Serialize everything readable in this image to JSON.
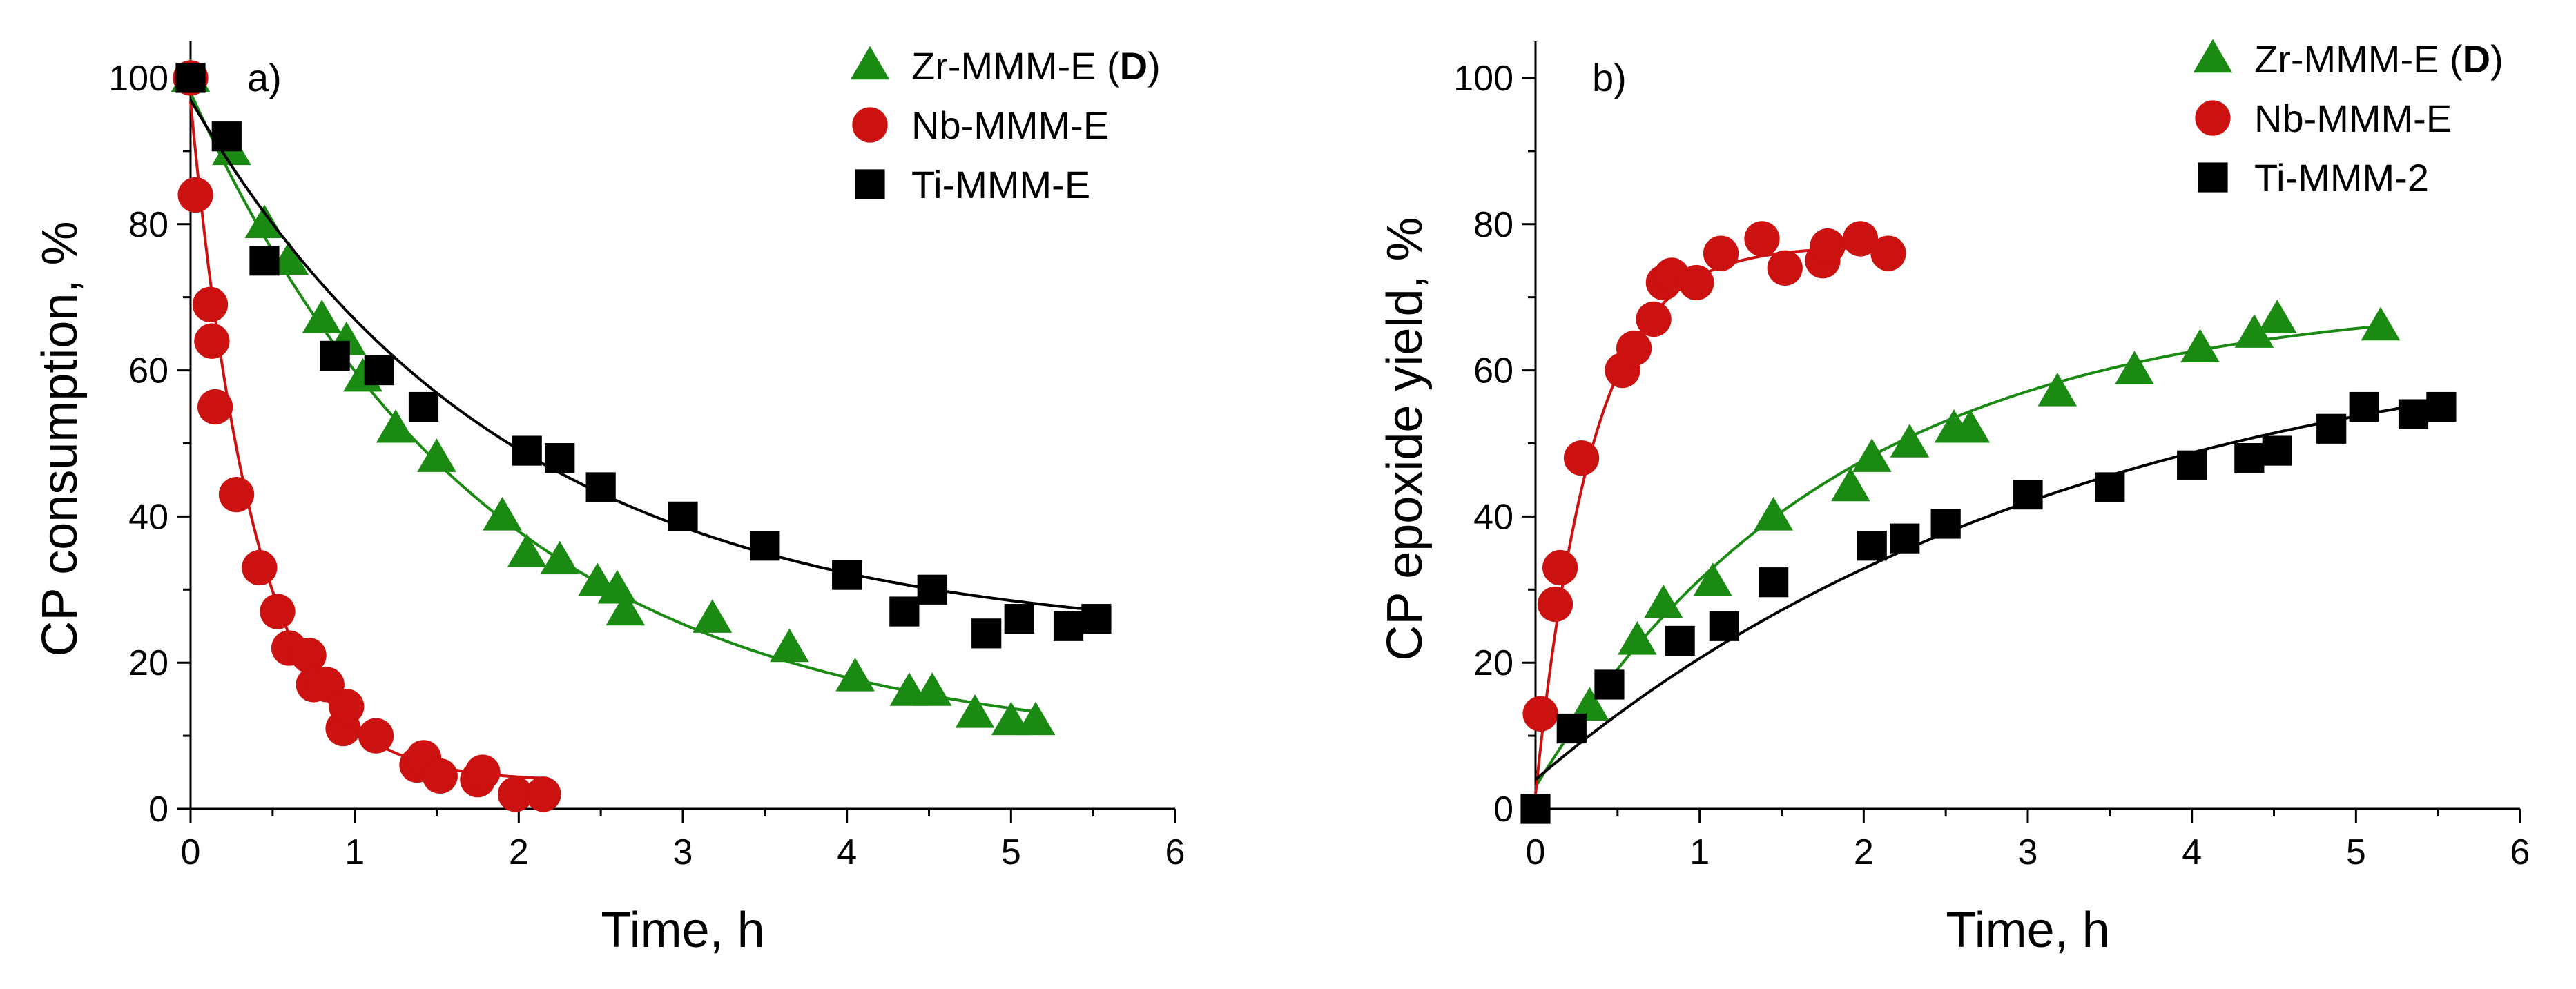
{
  "colors": {
    "zr": "#1a8a12",
    "nb": "#cc1111",
    "ti": "#000000"
  },
  "chart_data": [
    {
      "type": "scatter",
      "panel_label": "a)",
      "xlabel": "Time, h",
      "ylabel": "CP consumption, %",
      "xlim": [
        0,
        6
      ],
      "ylim": [
        0,
        105
      ],
      "xticks": [
        0,
        1,
        2,
        3,
        4,
        5,
        6
      ],
      "yticks": [
        0,
        20,
        40,
        60,
        80,
        100
      ],
      "legend_position": "top-right",
      "series": [
        {
          "key": "zr",
          "name_prefix": "Zr-MMM-E (",
          "name_bold": "D",
          "name_suffix": ")",
          "marker": "triangle",
          "x": [
            0.0,
            0.25,
            0.45,
            0.6,
            0.8,
            0.95,
            1.05,
            1.25,
            1.5,
            1.9,
            2.05,
            2.25,
            2.48,
            2.6,
            2.65,
            3.18,
            3.65,
            4.05,
            4.38,
            4.52,
            4.78,
            5.0,
            5.15
          ],
          "y": [
            100,
            90,
            80,
            75,
            67,
            64,
            59,
            52,
            48,
            40,
            35,
            34,
            31,
            30,
            27,
            26,
            22,
            18,
            16,
            16,
            13,
            12,
            12
          ],
          "fit": {
            "model": "exp",
            "A": 90,
            "k": 0.55,
            "C": 8
          }
        },
        {
          "key": "nb",
          "name_prefix": "Nb-MMM-E",
          "name_bold": "",
          "name_suffix": "",
          "marker": "circle",
          "x": [
            0.0,
            0.03,
            0.12,
            0.13,
            0.15,
            0.28,
            0.42,
            0.53,
            0.6,
            0.72,
            0.75,
            0.83,
            0.93,
            0.95,
            1.13,
            1.38,
            1.42,
            1.52,
            1.75,
            1.78,
            1.98,
            2.15
          ],
          "y": [
            100,
            84,
            69,
            64,
            55,
            43,
            33,
            27,
            22,
            21,
            17,
            17,
            11,
            14,
            10,
            6,
            7,
            4.5,
            4,
            5,
            2,
            2
          ],
          "fit": {
            "model": "exp",
            "A": 93,
            "k": 2.55,
            "C": 3.8
          }
        },
        {
          "key": "ti",
          "name_prefix": "Ti-MMM-E",
          "name_bold": "",
          "name_suffix": "",
          "marker": "square",
          "x": [
            0.0,
            0.22,
            0.45,
            0.88,
            1.15,
            1.42,
            2.05,
            2.25,
            2.5,
            3.0,
            3.5,
            4.0,
            4.35,
            4.52,
            4.85,
            5.05,
            5.35,
            5.52
          ],
          "y": [
            100,
            92,
            75,
            62,
            60,
            55,
            49,
            48,
            44,
            40,
            36,
            32,
            27,
            30,
            24,
            26,
            25,
            26
          ],
          "fit": {
            "model": "exp",
            "A": 74,
            "k": 0.52,
            "C": 23
          }
        }
      ]
    },
    {
      "type": "scatter",
      "panel_label": "b)",
      "xlabel": "Time, h",
      "ylabel": "CP epoxide yield, %",
      "xlim": [
        0,
        6
      ],
      "ylim": [
        0,
        105
      ],
      "xticks": [
        0,
        1,
        2,
        3,
        4,
        5,
        6
      ],
      "yticks": [
        0,
        20,
        40,
        60,
        80,
        100
      ],
      "legend_position": "top-right",
      "series": [
        {
          "key": "zr",
          "name_prefix": "Zr-MMM-E (",
          "name_bold": "D",
          "name_suffix": ")",
          "marker": "triangle",
          "x": [
            0.33,
            0.62,
            0.78,
            1.08,
            1.45,
            1.92,
            2.05,
            2.28,
            2.55,
            2.65,
            3.18,
            3.65,
            4.05,
            4.38,
            4.52,
            5.15
          ],
          "y": [
            14,
            23,
            28,
            31,
            40,
            44,
            48,
            50,
            52,
            52,
            57,
            60,
            63,
            65,
            67,
            66
          ],
          "fit": {
            "model": "rise",
            "A": 67,
            "k": 0.55,
            "C": 3,
            "from": 0,
            "to": 5.15
          }
        },
        {
          "key": "nb",
          "name_prefix": "Nb-MMM-E",
          "name_bold": "",
          "name_suffix": "",
          "marker": "circle",
          "x": [
            0.03,
            0.12,
            0.15,
            0.28,
            0.53,
            0.6,
            0.72,
            0.78,
            0.83,
            0.98,
            1.13,
            1.38,
            1.52,
            1.75,
            1.78,
            1.98,
            2.15
          ],
          "y": [
            13,
            28,
            33,
            48,
            60,
            63,
            67,
            72,
            73,
            72,
            76,
            78,
            74,
            75,
            77,
            78,
            76
          ],
          "fit": {
            "model": "rise",
            "A": 75,
            "k": 2.9,
            "C": 2,
            "from": 0,
            "to": 2.15
          }
        },
        {
          "key": "ti",
          "name_prefix": "Ti-MMM-2",
          "name_bold": "",
          "name_suffix": "",
          "marker": "square",
          "x": [
            0.0,
            0.22,
            0.45,
            0.88,
            1.15,
            1.45,
            2.05,
            2.25,
            2.5,
            3.0,
            3.5,
            4.0,
            4.35,
            4.52,
            4.85,
            5.05,
            5.35,
            5.52
          ],
          "y": [
            0,
            11,
            17,
            23,
            25,
            31,
            36,
            37,
            39,
            43,
            44,
            47,
            48,
            49,
            52,
            55,
            54,
            55
          ],
          "fit": {
            "model": "rise",
            "A": 64,
            "k": 0.3,
            "C": 4,
            "from": 0,
            "to": 5.52
          }
        }
      ]
    }
  ]
}
